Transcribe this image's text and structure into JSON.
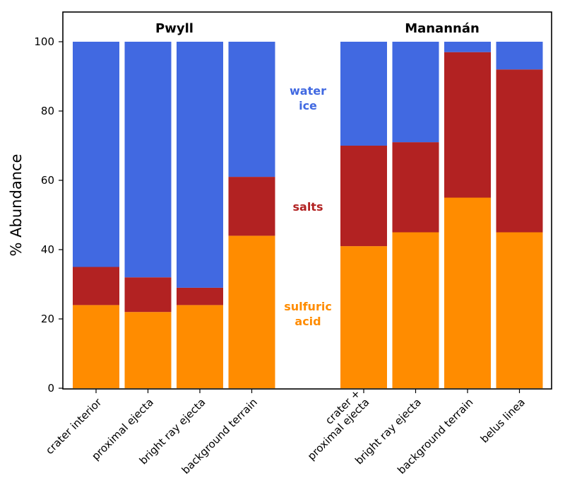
{
  "chart_data": {
    "type": "bar",
    "stacked": true,
    "groups": [
      {
        "title": "Pwyll",
        "categories": [
          [
            "crater interior"
          ],
          [
            "proximal ejecta"
          ],
          [
            "bright ray ejecta"
          ],
          [
            "background terrain"
          ]
        ],
        "series": [
          {
            "key": "sulfuric",
            "values": [
              24,
              22,
              24,
              44
            ]
          },
          {
            "key": "salts",
            "values": [
              11,
              10,
              5,
              17
            ]
          },
          {
            "key": "water",
            "values": [
              65,
              68,
              71,
              39
            ]
          }
        ]
      },
      {
        "title": "Manannán",
        "categories": [
          [
            "crater +",
            "proximal ejecta"
          ],
          [
            "bright ray ejecta"
          ],
          [
            "background terrain"
          ],
          [
            "belus linea"
          ]
        ],
        "series": [
          {
            "key": "sulfuric",
            "values": [
              41,
              45,
              55,
              45
            ]
          },
          {
            "key": "salts",
            "values": [
              29,
              26,
              42,
              47
            ]
          },
          {
            "key": "water",
            "values": [
              30,
              29,
              3,
              8
            ]
          }
        ]
      }
    ],
    "legend": [
      {
        "key": "water",
        "lines": [
          "water",
          "ice"
        ],
        "color": "#4169e1"
      },
      {
        "key": "salts",
        "lines": [
          "salts"
        ],
        "color": "#b22222"
      },
      {
        "key": "sulfuric",
        "lines": [
          "sulfuric",
          "acid"
        ],
        "color": "#ff8c00"
      }
    ],
    "legend_placement": "inside, between groups",
    "ylabel": "% Abundance",
    "ylim": [
      0,
      100
    ],
    "yticks": [
      0,
      20,
      40,
      60,
      80,
      100
    ],
    "grid": false
  }
}
